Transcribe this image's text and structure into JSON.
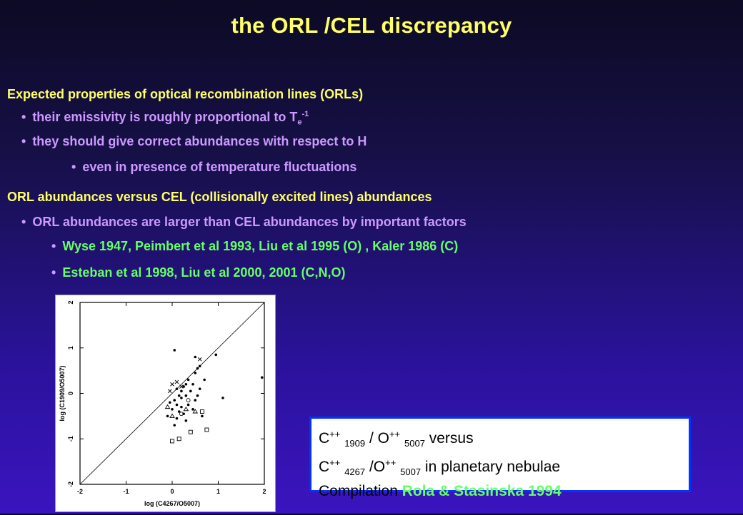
{
  "title": "the ORL /CEL discrepancy",
  "section1": {
    "heading": "Expected properties of optical recombination lines (ORLs)",
    "bullet1_text": "their emissivity is roughly proportional to T",
    "bullet1_sub": "e",
    "bullet1_sup": "-1",
    "bullet2": "they should give correct abundances with respect to H",
    "bullet3": "even in presence of temperature fluctuations"
  },
  "section2": {
    "heading": "ORL abundances versus CEL (collisionally excited lines) abundances",
    "bullet1": "ORL abundances are larger than CEL abundances by important factors",
    "ref1": "Wyse 1947, Peimbert et al 1993, Liu et al 1995 (O) , Kaler 1986 (C)",
    "ref2": "Esteban et al 1998, Liu et al 2000, 2001 (C,N,O)"
  },
  "caption": {
    "l1_a": "C",
    "l1_sup1": "++",
    "l1_sub1": "1909",
    "l1_b": " / O",
    "l1_sup2": "++",
    "l1_sub2": "5007",
    "l1_c": " versus",
    "l2_a": "C",
    "l2_sup1": "++",
    "l2_sub1": "4267",
    "l2_b": " /O",
    "l2_sup2": "++",
    "l2_sub2": "5007",
    "l2_c": " in planetary nebulae",
    "l3_a": "Compilation ",
    "l3_b": "Rola & Stasinska 1994"
  },
  "chart_data": {
    "type": "scatter",
    "xlabel": "log (C4267/O5007)",
    "ylabel": "log (C1909/O5007)",
    "xlim": [
      -2,
      2
    ],
    "ylim": [
      -2,
      2
    ],
    "x_ticks": [
      "-2",
      "-1",
      "0",
      "1",
      "2"
    ],
    "y_ticks": [
      "-2",
      "-1",
      "0",
      "1",
      "2"
    ],
    "diagonal": true,
    "series": [
      {
        "marker": "dot",
        "points": [
          [
            0.05,
            0.95
          ],
          [
            0.5,
            0.8
          ],
          [
            0.95,
            0.85
          ],
          [
            0.3,
            0.2
          ],
          [
            0.25,
            0.15
          ],
          [
            0.1,
            0.1
          ],
          [
            0.2,
            0.05
          ],
          [
            0.4,
            0.05
          ],
          [
            0.3,
            -0.05
          ],
          [
            0.15,
            -0.05
          ],
          [
            0.05,
            -0.15
          ],
          [
            -0.05,
            -0.2
          ],
          [
            0.1,
            -0.25
          ],
          [
            0.2,
            -0.3
          ],
          [
            0.35,
            -0.25
          ],
          [
            0.5,
            -0.15
          ],
          [
            0.55,
            -0.05
          ],
          [
            0.7,
            0.3
          ],
          [
            0.6,
            0.1
          ],
          [
            0.45,
            0.2
          ],
          [
            0.0,
            -0.35
          ],
          [
            0.15,
            -0.4
          ],
          [
            0.25,
            -0.45
          ],
          [
            0.1,
            -0.55
          ],
          [
            0.05,
            -0.7
          ],
          [
            -0.1,
            -0.5
          ],
          [
            0.3,
            -0.6
          ],
          [
            0.45,
            -0.35
          ],
          [
            1.1,
            -0.1
          ],
          [
            1.95,
            0.35
          ],
          [
            0.65,
            -0.5
          ],
          [
            0.35,
            0.3
          ],
          [
            0.5,
            0.45
          ],
          [
            0.55,
            0.55
          ],
          [
            0.6,
            0.6
          ],
          [
            0.2,
            -0.1
          ]
        ]
      },
      {
        "marker": "cross",
        "points": [
          [
            0.0,
            0.2
          ],
          [
            0.1,
            0.25
          ],
          [
            -0.05,
            0.05
          ],
          [
            0.2,
            0.15
          ],
          [
            0.6,
            0.75
          ]
        ]
      },
      {
        "marker": "triangle",
        "points": [
          [
            -0.1,
            -0.3
          ],
          [
            0.3,
            -0.35
          ],
          [
            0.0,
            -0.5
          ],
          [
            0.5,
            -0.4
          ]
        ]
      },
      {
        "marker": "square",
        "points": [
          [
            0.15,
            -1.0
          ],
          [
            0.0,
            -1.05
          ],
          [
            0.75,
            -0.8
          ],
          [
            0.4,
            -0.85
          ],
          [
            0.65,
            -0.4
          ]
        ]
      },
      {
        "marker": "open-circle",
        "points": [
          [
            0.2,
            -0.45
          ],
          [
            0.35,
            -0.15
          ]
        ]
      }
    ]
  }
}
